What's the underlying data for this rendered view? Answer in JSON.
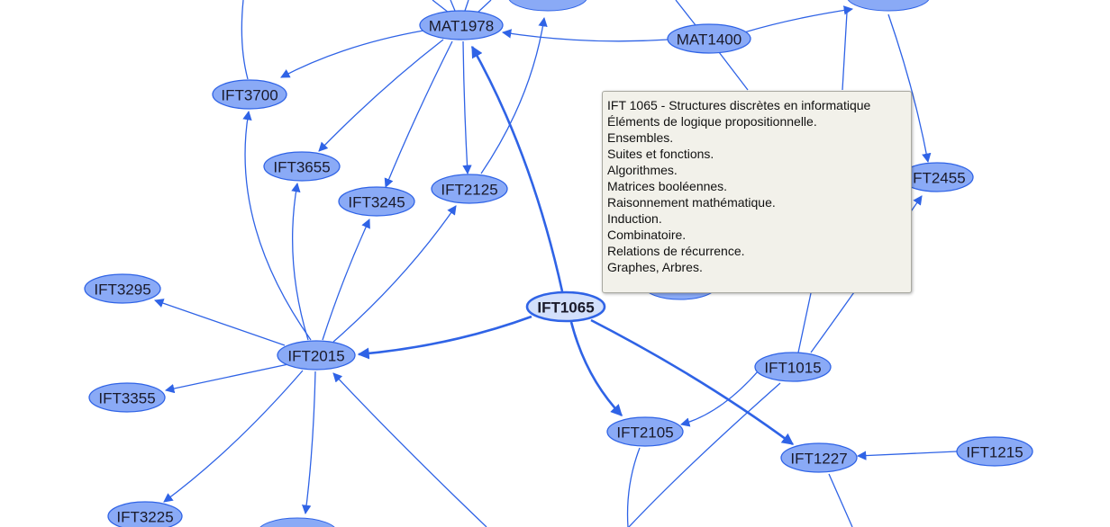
{
  "nodes": [
    {
      "label": "MAT1978"
    },
    {
      "label": "MAT1400"
    },
    {
      "label": "IFT3700"
    },
    {
      "label": "IFT3655"
    },
    {
      "label": "IFT3245"
    },
    {
      "label": "IFT2125"
    },
    {
      "label": "IFT2455"
    },
    {
      "label": "IFT3295"
    },
    {
      "label": "IFT1065"
    },
    {
      "label": "IFT2015"
    },
    {
      "label": "IFT1015"
    },
    {
      "label": "IFT3355"
    },
    {
      "label": "IFT2105"
    },
    {
      "label": "IFT1227"
    },
    {
      "label": "IFT1215"
    },
    {
      "label": "IFT3225"
    }
  ],
  "tooltip": {
    "title": "IFT 1065 - Structures discrètes en informatique",
    "lines": [
      "Éléments de logique propositionnelle.",
      "Ensembles.",
      "Suites et fonctions.",
      "Algorithmes.",
      "Matrices booléennes.",
      "Raisonnement mathématique.",
      "Induction.",
      "Combinatoire.",
      "Relations de récurrence.",
      "Graphes, Arbres."
    ]
  }
}
